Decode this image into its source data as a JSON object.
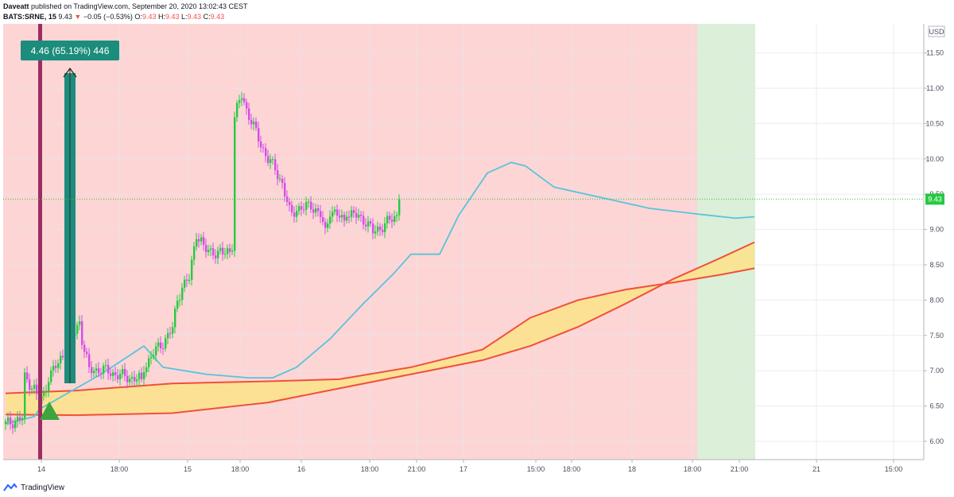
{
  "header": {
    "author": "Daveatt",
    "published_text": "published on TradingView.com, September 20, 2020 13:02:43 CEST",
    "symbol": "BATS:SRNE, 15",
    "last": "9.43",
    "change_arrow": "▼",
    "change": "−0.05 (−0.53%)",
    "o_label": "O:",
    "o_value": "9.43",
    "h_label": "H:",
    "h_value": "9.43",
    "l_label": "L:",
    "l_value": "9.43",
    "c_label": "C:",
    "c_value": "9.43"
  },
  "footer": {
    "brand": "TradingView"
  },
  "colors": {
    "bull": "#26c941",
    "bear": "#d44de8",
    "bg_red": "#fdd5d5",
    "bg_green": "#dcefd8",
    "signal_bar": "#9c2d63",
    "arrow": "#1c8c7c",
    "ema": "#58c4dc",
    "cloud_line": "#f0503a",
    "cloud_fill": "#fbe38a",
    "price_label": "#26c941"
  },
  "chart_data": {
    "type": "candlestick",
    "currency_label": "USD",
    "y_ticks": [
      "11.50",
      "11.00",
      "10.50",
      "10.00",
      "9.50",
      "9.00",
      "8.50",
      "8.00",
      "7.50",
      "7.00",
      "6.50",
      "6.00"
    ],
    "x_ticks": [
      "14",
      "18:00",
      "15",
      "18:00",
      "16",
      "18:00",
      "21:00",
      "17",
      "15:00",
      "18:00",
      "18",
      "18:00",
      "21:00",
      "21",
      "15:00"
    ],
    "ylim": [
      5.75,
      11.85
    ],
    "last_price": 9.43,
    "last_price_label": "9.43",
    "measure_label": "4.46 (65.19%) 446",
    "segments": [
      {
        "count": 8,
        "anchors": [
          [
            0,
            6.24
          ],
          [
            7,
            6.33
          ]
        ]
      },
      {
        "count": 24,
        "anchors": [
          [
            0,
            6.9
          ],
          [
            4,
            6.75
          ],
          [
            6,
            6.55
          ],
          [
            8,
            6.65
          ],
          [
            10,
            6.92
          ],
          [
            14,
            7.1
          ],
          [
            18,
            7.35
          ],
          [
            22,
            7.62
          ],
          [
            23,
            7.7
          ]
        ]
      },
      {
        "count": 26,
        "anchors": [
          [
            0,
            7.45
          ],
          [
            3,
            7.0
          ],
          [
            8,
            7.02
          ],
          [
            14,
            6.95
          ],
          [
            20,
            6.9
          ],
          [
            25,
            6.88
          ]
        ]
      },
      {
        "count": 26,
        "anchors": [
          [
            0,
            7.05
          ],
          [
            4,
            7.25
          ],
          [
            8,
            7.4
          ],
          [
            12,
            7.6
          ],
          [
            14,
            8.0
          ],
          [
            16,
            8.2
          ],
          [
            19,
            8.3
          ],
          [
            22,
            8.95
          ],
          [
            25,
            8.78
          ]
        ]
      },
      {
        "count": 12,
        "anchors": [
          [
            0,
            8.7
          ],
          [
            4,
            8.68
          ],
          [
            7,
            8.65
          ],
          [
            9,
            8.7
          ]
        ]
      },
      {
        "count": 26,
        "anchors": [
          [
            0,
            10.6
          ],
          [
            3,
            10.9
          ],
          [
            5,
            10.7
          ],
          [
            8,
            10.45
          ],
          [
            11,
            10.2
          ],
          [
            14,
            10.0
          ],
          [
            17,
            9.85
          ],
          [
            20,
            9.65
          ],
          [
            23,
            9.25
          ],
          [
            25,
            9.18
          ]
        ]
      },
      {
        "count": 22,
        "anchors": [
          [
            0,
            9.3
          ],
          [
            3,
            9.3
          ],
          [
            6,
            9.35
          ],
          [
            10,
            9.2
          ],
          [
            12,
            8.95
          ],
          [
            14,
            9.28
          ],
          [
            17,
            9.2
          ],
          [
            20,
            9.12
          ],
          [
            21,
            9.18
          ]
        ]
      },
      {
        "count": 22,
        "anchors": [
          [
            0,
            9.22
          ],
          [
            4,
            9.18
          ],
          [
            7,
            9.12
          ],
          [
            10,
            8.96
          ],
          [
            14,
            9.05
          ],
          [
            18,
            9.15
          ],
          [
            20,
            9.2
          ],
          [
            21,
            9.43
          ]
        ]
      }
    ],
    "ema": [
      [
        0,
        6.25
      ],
      [
        12,
        6.35
      ],
      [
        14,
        6.45
      ],
      [
        40,
        6.95
      ],
      [
        58,
        7.35
      ],
      [
        66,
        7.05
      ],
      [
        84,
        6.95
      ],
      [
        102,
        6.9
      ],
      [
        112,
        6.9
      ],
      [
        122,
        7.05
      ],
      [
        136,
        7.45
      ],
      [
        150,
        7.95
      ],
      [
        162,
        8.35
      ],
      [
        170,
        8.65
      ],
      [
        182,
        8.65
      ],
      [
        190,
        9.2
      ],
      [
        202,
        9.8
      ],
      [
        212,
        9.95
      ],
      [
        218,
        9.9
      ],
      [
        230,
        9.6
      ],
      [
        250,
        9.45
      ],
      [
        270,
        9.3
      ],
      [
        290,
        9.22
      ],
      [
        306,
        9.16
      ],
      [
        314,
        9.18
      ]
    ],
    "cloud_upper": [
      [
        0,
        6.68
      ],
      [
        30,
        6.72
      ],
      [
        70,
        6.82
      ],
      [
        110,
        6.85
      ],
      [
        140,
        6.88
      ],
      [
        170,
        7.05
      ],
      [
        200,
        7.3
      ],
      [
        220,
        7.75
      ],
      [
        240,
        8.0
      ],
      [
        260,
        8.15
      ],
      [
        280,
        8.25
      ],
      [
        300,
        8.36
      ],
      [
        314,
        8.45
      ]
    ],
    "cloud_lower": [
      [
        0,
        6.38
      ],
      [
        30,
        6.37
      ],
      [
        70,
        6.4
      ],
      [
        110,
        6.55
      ],
      [
        140,
        6.75
      ],
      [
        170,
        6.95
      ],
      [
        200,
        7.15
      ],
      [
        220,
        7.35
      ],
      [
        240,
        7.62
      ],
      [
        260,
        7.95
      ],
      [
        280,
        8.3
      ],
      [
        300,
        8.6
      ],
      [
        314,
        8.82
      ]
    ]
  }
}
